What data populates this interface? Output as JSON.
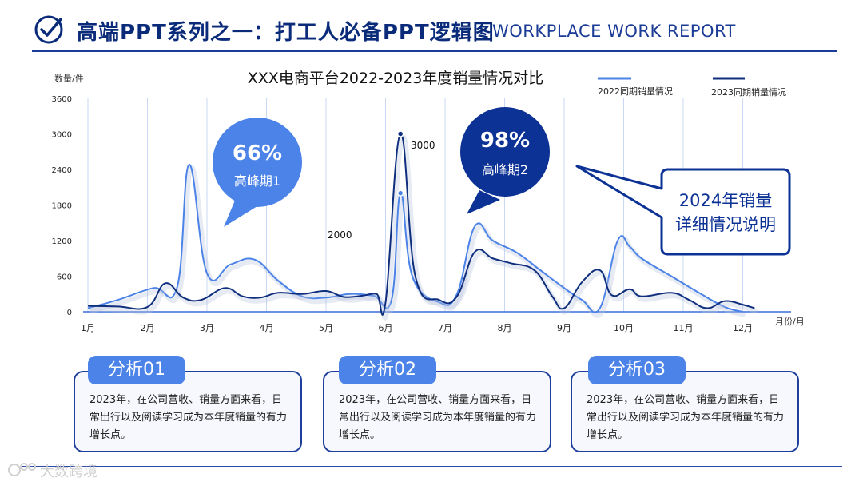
{
  "header": {
    "title_cn": "高端PPT系列之一：打工人必备PPT逻辑图",
    "title_en": "WORKPLACE WORK REPORT"
  },
  "colors": {
    "brand_dark": "#0a2a7a",
    "series_2022": "#4b83e8",
    "series_2023": "#0f2f7e",
    "card_border": "#1e3f9c"
  },
  "chart_data": {
    "type": "line",
    "title": "XXX电商平台2022-2023年度销量情况对比",
    "ylabel": "数量/件",
    "xlabel": "月份/月",
    "ylim": [
      0,
      3600
    ],
    "yticks": [
      0,
      600,
      1200,
      1800,
      2400,
      3000,
      3600
    ],
    "categories": [
      "1月",
      "2月",
      "3月",
      "4月",
      "5月",
      "6月",
      "7月",
      "8月",
      "9月",
      "10月",
      "11月",
      "12月"
    ],
    "legend_position": "top-right",
    "grid": "vertical",
    "series": [
      {
        "name": "2022同期销量情况",
        "color": "#4b83e8",
        "points": [
          [
            1.0,
            60
          ],
          [
            1.5,
            200
          ],
          [
            2.1,
            400
          ],
          [
            2.5,
            420
          ],
          [
            2.7,
            2480
          ],
          [
            3.0,
            650
          ],
          [
            3.4,
            800
          ],
          [
            3.8,
            880
          ],
          [
            4.2,
            520
          ],
          [
            4.6,
            260
          ],
          [
            5.0,
            240
          ],
          [
            5.4,
            300
          ],
          [
            5.8,
            270
          ],
          [
            6.1,
            200
          ],
          [
            6.25,
            2000
          ],
          [
            6.45,
            600
          ],
          [
            6.9,
            160
          ],
          [
            7.2,
            300
          ],
          [
            7.5,
            1440
          ],
          [
            7.8,
            1200
          ],
          [
            8.2,
            1000
          ],
          [
            8.6,
            700
          ],
          [
            9.0,
            400
          ],
          [
            9.3,
            200
          ],
          [
            9.6,
            60
          ],
          [
            9.9,
            1200
          ],
          [
            10.1,
            1100
          ],
          [
            10.3,
            900
          ],
          [
            10.8,
            600
          ],
          [
            11.3,
            300
          ],
          [
            11.7,
            80
          ],
          [
            12.0,
            0
          ]
        ]
      },
      {
        "name": "2023同期销量情况",
        "color": "#0f2f7e",
        "points": [
          [
            1.0,
            100
          ],
          [
            1.5,
            90
          ],
          [
            2.0,
            80
          ],
          [
            2.3,
            480
          ],
          [
            2.6,
            240
          ],
          [
            2.9,
            200
          ],
          [
            3.3,
            400
          ],
          [
            3.6,
            260
          ],
          [
            3.9,
            240
          ],
          [
            4.2,
            320
          ],
          [
            4.6,
            300
          ],
          [
            5.0,
            350
          ],
          [
            5.3,
            250
          ],
          [
            5.6,
            270
          ],
          [
            5.85,
            300
          ],
          [
            6.0,
            160
          ],
          [
            6.25,
            3000
          ],
          [
            6.5,
            600
          ],
          [
            6.9,
            200
          ],
          [
            7.2,
            260
          ],
          [
            7.5,
            1010
          ],
          [
            7.8,
            900
          ],
          [
            8.1,
            820
          ],
          [
            8.5,
            700
          ],
          [
            8.8,
            260
          ],
          [
            9.0,
            60
          ],
          [
            9.3,
            500
          ],
          [
            9.6,
            700
          ],
          [
            9.8,
            280
          ],
          [
            10.1,
            380
          ],
          [
            10.3,
            260
          ],
          [
            10.8,
            320
          ],
          [
            11.1,
            200
          ],
          [
            11.4,
            60
          ],
          [
            11.7,
            180
          ],
          [
            12.0,
            120
          ],
          [
            12.2,
            60
          ]
        ]
      }
    ],
    "annotations": [
      {
        "label": "3000",
        "x": 6.25,
        "y": 3000
      },
      {
        "label": "2000",
        "x": 6.25,
        "y": 2000
      }
    ]
  },
  "bubbles": [
    {
      "percent": "66%",
      "label": "高峰期1"
    },
    {
      "percent": "98%",
      "label": "高峰期2"
    }
  ],
  "callout": {
    "line1": "2024年销量",
    "line2": "详细情况说明"
  },
  "cards": [
    {
      "tab": "分析01",
      "text": "2023年，在公司营收、销量方面来看，日常出行以及阅读学习成为本年度销量的有力增长点。"
    },
    {
      "tab": "分析02",
      "text": "2023年，在公司营收、销量方面来看，日常出行以及阅读学习成为本年度销量的有力增长点。"
    },
    {
      "tab": "分析03",
      "text": "2023年，在公司营收、销量方面来看，日常出行以及阅读学习成为本年度销量的有力增长点。"
    }
  ],
  "watermark": {
    "text": "大数跨境"
  }
}
